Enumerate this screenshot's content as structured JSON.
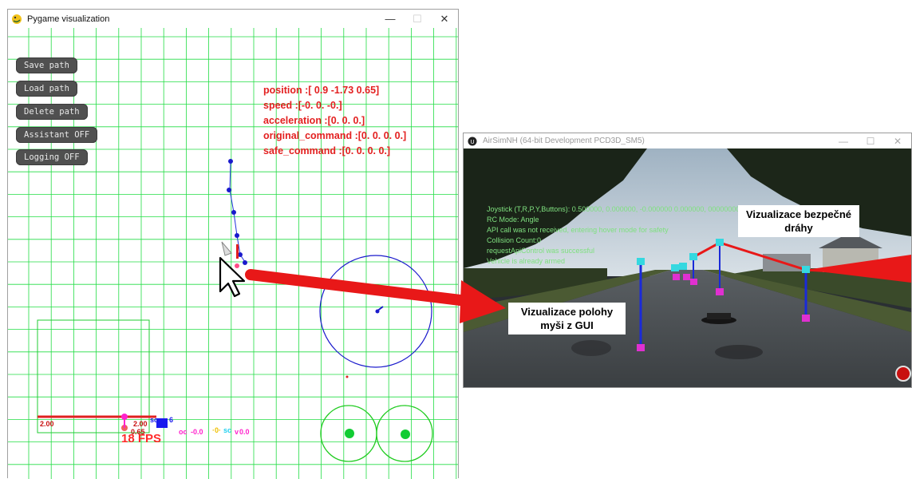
{
  "pygame_window": {
    "title": "Pygame visualization",
    "controls": {
      "minimize": "—",
      "maximize": "☐",
      "close": "✕"
    },
    "buttons": [
      "Save path",
      "Load path",
      "Delete path",
      "Assistant OFF",
      "Logging OFF"
    ],
    "info": {
      "position": "position :[ 0.9  -1.73  0.65]",
      "speed": "speed :[-0.  0. -0.]",
      "acceleration": "acceleration :[0. 0. 0.]",
      "original_command": "original_command :[0. 0. 0. 0.]",
      "safe_command": "safe_command :[0. 0. 0. 0.]"
    },
    "bottom": {
      "left_value": "2.00",
      "mid_value": "2.00",
      "height_value": "0.65",
      "sc_label": "sc",
      "sc_value": "6",
      "fps": "18 FPS",
      "oc_label": "oc",
      "oc_value": "-0.0",
      "sc_mid": "sc",
      "v_label": "v",
      "v_value": "0.0"
    }
  },
  "sim_window": {
    "title": "AirSimNH (64-bit Development PCD3D_SM5)",
    "controls": {
      "minimize": "—",
      "maximize": "☐",
      "close": "✕"
    },
    "hud": [
      "Joystick (T,R,P,Y,Buttons): 0.500000, 0.000000, -0.000000 0.000000, 00000000",
      "RC Mode: Angle",
      "API call was not received, entering hover mode for safety",
      "Collision Count:0",
      "requestApiControl was successful",
      "Vehicle is already armed"
    ]
  },
  "annotations": {
    "mouse_label": "Vizualizace polohy myši z GUI",
    "safe_path_label": "Vizualizace bezpečné dráhy"
  },
  "colors": {
    "grid": "#22dd44",
    "info_text": "#e32020",
    "arrow": "#e81818",
    "path": "#1111cc",
    "hud": "#7fe07f"
  }
}
